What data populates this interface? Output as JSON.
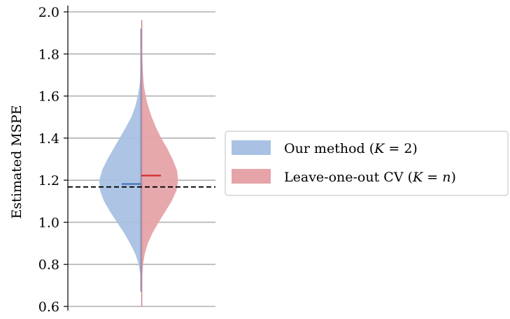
{
  "chart_data": {
    "type": "violin",
    "ylabel": "Estimated MSPE",
    "ylim": [
      0.58,
      2.03
    ],
    "yticks": [
      "0.6",
      "0.8",
      "1.0",
      "1.2",
      "1.4",
      "1.6",
      "1.8",
      "2.0"
    ],
    "grid": true,
    "reference_line": {
      "value": 1.168,
      "style": "dashed",
      "color": "#000000"
    },
    "legend_position": "right",
    "series": [
      {
        "name": "Our method (K = 2)",
        "label_prefix": "Our method (",
        "label_math": "K",
        "label_suffix": " = 2)",
        "side": "left",
        "fill": "#a9c1e3",
        "mean_color": "#3f6fb6",
        "extent_color": "#7f93c2",
        "mean": 1.182,
        "extent": [
          0.67,
          1.92
        ],
        "density": [
          [
            0.67,
            0.0
          ],
          [
            0.75,
            0.02
          ],
          [
            0.8,
            0.06
          ],
          [
            0.85,
            0.14
          ],
          [
            0.9,
            0.26
          ],
          [
            0.95,
            0.4
          ],
          [
            1.0,
            0.56
          ],
          [
            1.05,
            0.72
          ],
          [
            1.1,
            0.86
          ],
          [
            1.15,
            0.95
          ],
          [
            1.2,
            0.97
          ],
          [
            1.25,
            0.9
          ],
          [
            1.3,
            0.78
          ],
          [
            1.35,
            0.64
          ],
          [
            1.4,
            0.5
          ],
          [
            1.45,
            0.36
          ],
          [
            1.5,
            0.23
          ],
          [
            1.55,
            0.14
          ],
          [
            1.6,
            0.08
          ],
          [
            1.65,
            0.04
          ],
          [
            1.7,
            0.02
          ],
          [
            1.8,
            0.01
          ],
          [
            1.92,
            0.0
          ]
        ]
      },
      {
        "name": "Leave-one-out CV (K = n)",
        "label_prefix": "Leave-one-out CV (",
        "label_math": "K",
        "label_mid": " = ",
        "label_math2": "n",
        "label_suffix": ")",
        "side": "right",
        "fill": "#e6a3a8",
        "mean_color": "#d42a2f",
        "extent_color": "#c88a96",
        "mean": 1.222,
        "extent": [
          0.6,
          1.96
        ],
        "density": [
          [
            0.6,
            0.0
          ],
          [
            0.7,
            0.01
          ],
          [
            0.8,
            0.04
          ],
          [
            0.85,
            0.08
          ],
          [
            0.9,
            0.15
          ],
          [
            0.95,
            0.26
          ],
          [
            1.0,
            0.4
          ],
          [
            1.05,
            0.55
          ],
          [
            1.1,
            0.7
          ],
          [
            1.15,
            0.81
          ],
          [
            1.2,
            0.85
          ],
          [
            1.25,
            0.82
          ],
          [
            1.3,
            0.72
          ],
          [
            1.35,
            0.6
          ],
          [
            1.4,
            0.46
          ],
          [
            1.45,
            0.34
          ],
          [
            1.5,
            0.24
          ],
          [
            1.55,
            0.16
          ],
          [
            1.6,
            0.1
          ],
          [
            1.65,
            0.06
          ],
          [
            1.7,
            0.04
          ],
          [
            1.8,
            0.02
          ],
          [
            1.9,
            0.01
          ],
          [
            1.96,
            0.0
          ]
        ]
      }
    ]
  }
}
